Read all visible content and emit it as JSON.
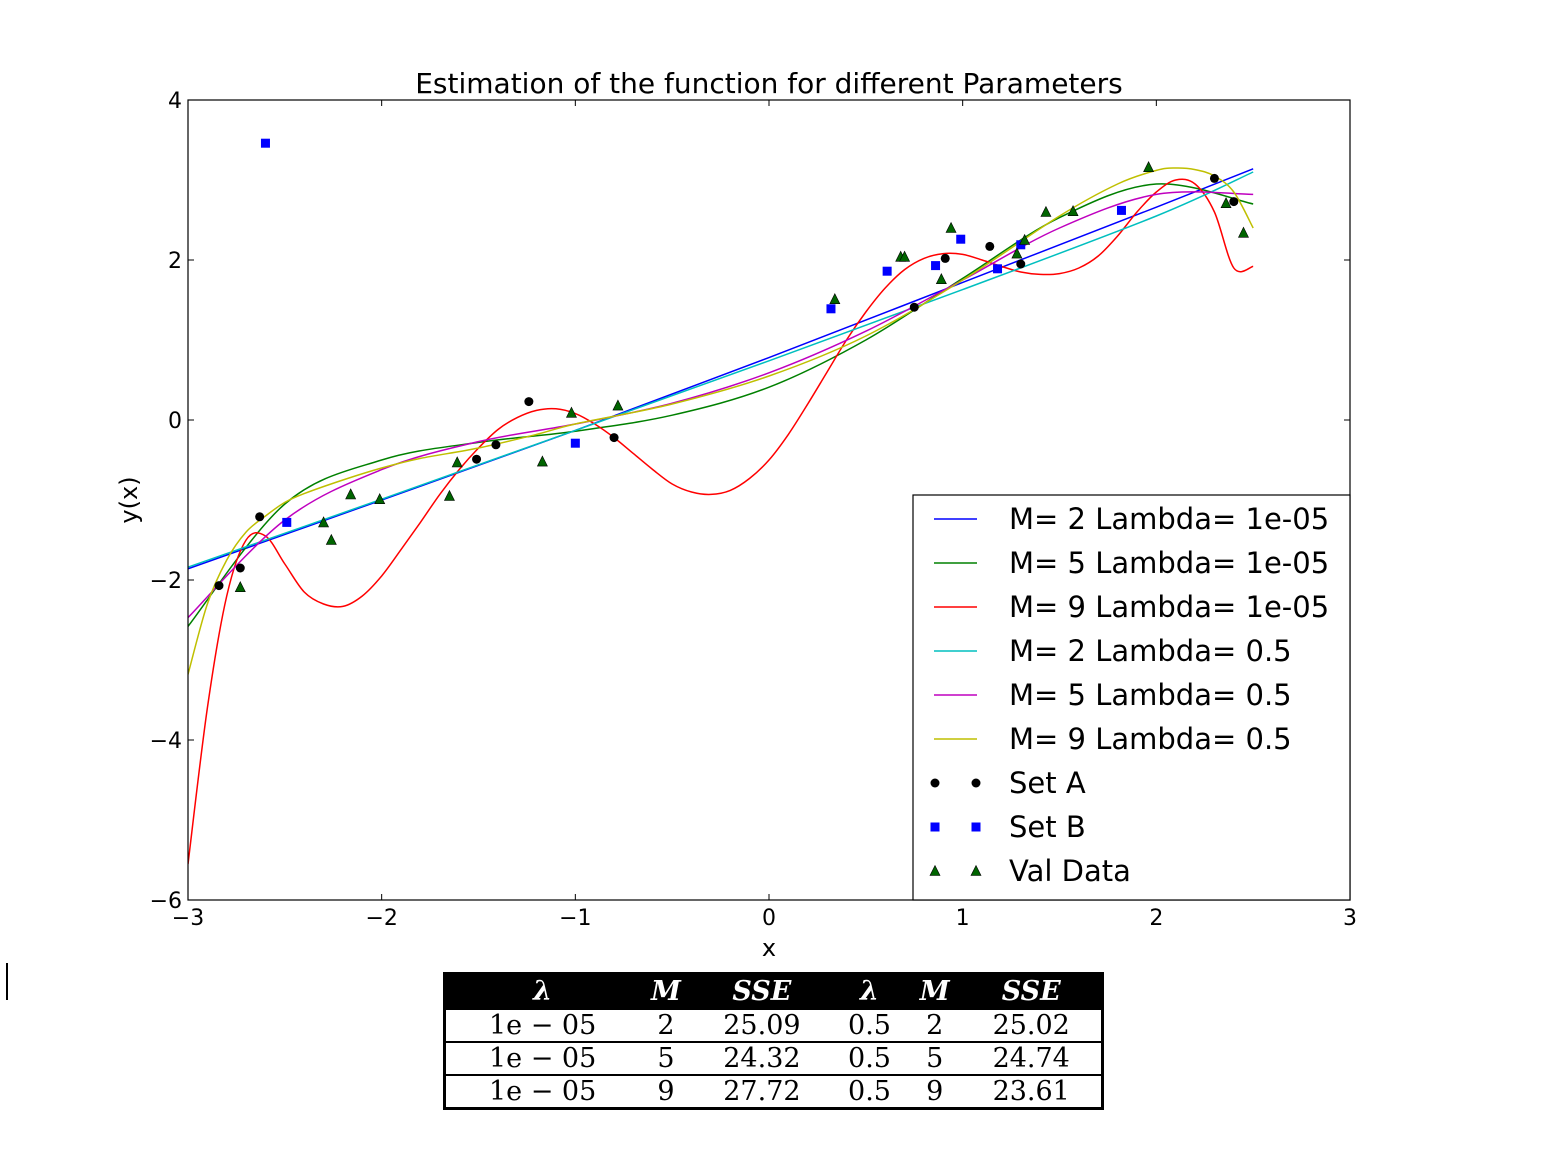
{
  "chart_data": {
    "type": "line",
    "title": "Estimation of the function for different Parameters",
    "xlabel": "x",
    "ylabel": "y(x)",
    "xlim": [
      -3,
      3
    ],
    "ylim": [
      -6,
      4
    ],
    "xticks": [
      -3,
      -2,
      -1,
      0,
      1,
      2,
      3
    ],
    "xtick_labels": [
      "−3",
      "−2",
      "−1",
      "0",
      "1",
      "2",
      "3"
    ],
    "yticks": [
      -6,
      -4,
      -2,
      0,
      2,
      4
    ],
    "ytick_labels": [
      "−6",
      "−4",
      "−2",
      "0",
      "2",
      "4"
    ],
    "grid": false,
    "legend_position": "lower-right",
    "series": [
      {
        "name": "M= 2 Lambda= 1e-05",
        "kind": "line",
        "color": "#0000ff",
        "x": [
          -3,
          -2,
          -1,
          0,
          1,
          2,
          2.5
        ],
        "y": [
          -1.86,
          -1.0,
          -0.13,
          0.78,
          1.72,
          2.66,
          3.14
        ]
      },
      {
        "name": "M= 5 Lambda= 1e-05",
        "kind": "line",
        "color": "#008000",
        "x": [
          -3,
          -2.5,
          -2,
          -1.5,
          -1,
          -0.5,
          0,
          0.5,
          1,
          1.5,
          2,
          2.5
        ],
        "y": [
          -2.58,
          -1.05,
          -0.5,
          -0.28,
          -0.14,
          0.06,
          0.41,
          1.0,
          1.77,
          2.53,
          2.95,
          2.7
        ]
      },
      {
        "name": "M= 9 Lambda= 1e-05",
        "kind": "line",
        "color": "#ff0000",
        "x": [
          -3,
          -2.9,
          -2.8,
          -2.7,
          -2.6,
          -2.5,
          -2.4,
          -2.3,
          -2.2,
          -2.1,
          -2,
          -1.9,
          -1.8,
          -1.7,
          -1.6,
          -1.5,
          -1.4,
          -1.3,
          -1.2,
          -1.1,
          -1,
          -0.9,
          -0.8,
          -0.7,
          -0.6,
          -0.5,
          -0.4,
          -0.3,
          -0.2,
          -0.1,
          0,
          0.1,
          0.2,
          0.3,
          0.4,
          0.5,
          0.6,
          0.7,
          0.8,
          0.9,
          1,
          1.1,
          1.2,
          1.3,
          1.4,
          1.5,
          1.6,
          1.7,
          1.8,
          1.9,
          2,
          2.1,
          2.2,
          2.3,
          2.4,
          2.5
        ],
        "y": [
          -5.55,
          -3.6,
          -2.2,
          -1.5,
          -1.45,
          -1.8,
          -2.15,
          -2.3,
          -2.33,
          -2.2,
          -1.95,
          -1.62,
          -1.28,
          -0.93,
          -0.62,
          -0.35,
          -0.12,
          0.03,
          0.12,
          0.14,
          0.08,
          -0.05,
          -0.22,
          -0.42,
          -0.62,
          -0.8,
          -0.9,
          -0.93,
          -0.88,
          -0.73,
          -0.5,
          -0.18,
          0.2,
          0.6,
          1.0,
          1.35,
          1.65,
          1.88,
          2.02,
          2.08,
          2.07,
          2.0,
          1.92,
          1.85,
          1.82,
          1.83,
          1.9,
          2.05,
          2.3,
          2.6,
          2.85,
          3.0,
          2.95,
          2.6,
          1.9,
          1.92
        ]
      },
      {
        "name": "M= 2 Lambda= 0.5",
        "kind": "line",
        "color": "#00bfbf",
        "x": [
          -3,
          -2,
          -1,
          0,
          1,
          2,
          2.5
        ],
        "y": [
          -1.84,
          -0.99,
          -0.13,
          0.74,
          1.63,
          2.55,
          3.1
        ]
      },
      {
        "name": "M= 5 Lambda= 0.5",
        "kind": "line",
        "color": "#bf00bf",
        "x": [
          -3,
          -2.5,
          -2,
          -1.5,
          -1,
          -0.5,
          0,
          0.5,
          1,
          1.5,
          2,
          2.5
        ],
        "y": [
          -2.47,
          -1.25,
          -0.62,
          -0.27,
          -0.05,
          0.21,
          0.59,
          1.11,
          1.75,
          2.4,
          2.82,
          2.82
        ]
      },
      {
        "name": "M= 9 Lambda= 0.5",
        "kind": "line",
        "color": "#bfbf00",
        "x": [
          -3,
          -2.9,
          -2.8,
          -2.7,
          -2.6,
          -2.5,
          -2.4,
          -2.2,
          -2,
          -1.8,
          -1.5,
          -1.2,
          -1,
          -0.5,
          0,
          0.5,
          1,
          1.5,
          1.8,
          2,
          2.1,
          2.2,
          2.3,
          2.4,
          2.5
        ],
        "y": [
          -3.18,
          -2.3,
          -1.75,
          -1.4,
          -1.2,
          -1.03,
          -0.92,
          -0.75,
          -0.6,
          -0.48,
          -0.35,
          -0.18,
          -0.05,
          0.2,
          0.55,
          1.05,
          1.75,
          2.55,
          2.95,
          3.12,
          3.15,
          3.13,
          3.05,
          2.85,
          2.4
        ]
      },
      {
        "name": "Set A",
        "kind": "scatter",
        "marker": "circle",
        "color": "#000000",
        "x": [
          -2.84,
          -2.73,
          -2.63,
          -1.51,
          -1.41,
          -1.24,
          -0.8,
          0.75,
          0.91,
          1.14,
          1.3,
          2.3,
          2.4
        ],
        "y": [
          -2.07,
          -1.85,
          -1.21,
          -0.49,
          -0.31,
          0.23,
          -0.22,
          1.41,
          2.02,
          2.17,
          1.95,
          3.02,
          2.73
        ]
      },
      {
        "name": "Set B",
        "kind": "scatter",
        "marker": "square",
        "color": "#0000ff",
        "x": [
          -2.6,
          -2.49,
          -1.0,
          0.32,
          0.61,
          0.86,
          0.99,
          1.18,
          1.3,
          1.82
        ],
        "y": [
          3.46,
          -1.28,
          -0.29,
          1.39,
          1.86,
          1.93,
          2.26,
          1.89,
          2.19,
          2.62
        ]
      },
      {
        "name": "Val Data",
        "kind": "scatter",
        "marker": "triangle",
        "color": "#006400",
        "x": [
          -2.73,
          -2.3,
          -2.26,
          -2.16,
          -2.01,
          -1.65,
          -1.61,
          -1.17,
          -1.02,
          -0.78,
          0.34,
          0.68,
          0.7,
          0.89,
          0.94,
          1.28,
          1.32,
          1.43,
          1.57,
          1.96,
          2.36,
          2.45
        ],
        "y": [
          -2.09,
          -1.28,
          -1.5,
          -0.93,
          -0.99,
          -0.95,
          -0.53,
          -0.52,
          0.09,
          0.18,
          1.51,
          2.04,
          2.04,
          1.76,
          2.4,
          2.08,
          2.25,
          2.6,
          2.61,
          3.16,
          2.71,
          2.34
        ]
      }
    ]
  },
  "table": {
    "headers": [
      "λ",
      "M",
      "SSE",
      "λ",
      "M",
      "SSE"
    ],
    "rows": [
      [
        "1e − 05",
        "2",
        "25.09",
        "0.5",
        "2",
        "25.02"
      ],
      [
        "1e − 05",
        "5",
        "24.32",
        "0.5",
        "5",
        "24.74"
      ],
      [
        "1e − 05",
        "9",
        "27.72",
        "0.5",
        "9",
        "23.61"
      ]
    ]
  }
}
